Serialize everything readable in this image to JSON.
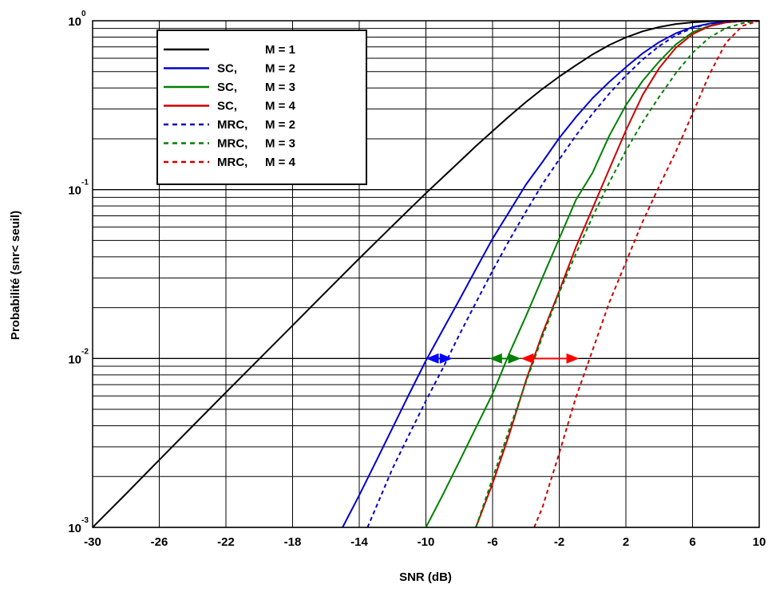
{
  "chart_data": {
    "type": "line",
    "title": "",
    "xlabel": "SNR (dB)",
    "ylabel": "Probabilité (snr< seuil)",
    "xlim": [
      -30,
      10
    ],
    "ylim": [
      0.001,
      1
    ],
    "yscale": "log",
    "grid": true,
    "legend_position": "top-left",
    "x_ticks": [
      -30,
      -26,
      -22,
      -18,
      -14,
      -10,
      -6,
      -2,
      2,
      6,
      10
    ],
    "y_ticks": [
      {
        "base": "10",
        "exp": "-3",
        "value": 0.001
      },
      {
        "base": "10",
        "exp": "-2",
        "value": 0.01
      },
      {
        "base": "10",
        "exp": "-1",
        "value": 0.1
      },
      {
        "base": "10",
        "exp": "0",
        "value": 1
      }
    ],
    "series": [
      {
        "name": "M = 1",
        "label": "M = 1",
        "legend_prefix": "",
        "color": "#000000",
        "style": "solid",
        "x": [
          -30,
          -28,
          -26,
          -24,
          -22,
          -20,
          -18,
          -16,
          -14,
          -12,
          -10,
          -9,
          -8,
          -7,
          -6,
          -5,
          -4,
          -3,
          -2,
          -1,
          0,
          1,
          2,
          3,
          4,
          5,
          6,
          7,
          8,
          9,
          10
        ],
        "y": [
          0.001,
          0.00158,
          0.00251,
          0.00398,
          0.0063,
          0.00995,
          0.0157,
          0.0248,
          0.0391,
          0.0612,
          0.0952,
          0.118,
          0.146,
          0.181,
          0.222,
          0.272,
          0.33,
          0.395,
          0.467,
          0.545,
          0.632,
          0.718,
          0.797,
          0.865,
          0.918,
          0.956,
          0.979,
          0.992,
          0.997,
          0.999,
          1.0
        ]
      },
      {
        "name": "SC, M = 2",
        "label": "M = 2",
        "legend_prefix": "SC,",
        "color": "#0000cc",
        "style": "solid",
        "x": [
          -15,
          -14,
          -13,
          -12,
          -11,
          -10,
          -9,
          -8,
          -7,
          -6,
          -5,
          -4,
          -3,
          -2,
          -1,
          0,
          1,
          2,
          3,
          4,
          5,
          6,
          7,
          8,
          9,
          10
        ],
        "y": [
          0.001,
          0.00155,
          0.00245,
          0.00389,
          0.00617,
          0.00971,
          0.0147,
          0.0222,
          0.0338,
          0.0512,
          0.074,
          0.107,
          0.146,
          0.202,
          0.269,
          0.348,
          0.434,
          0.531,
          0.641,
          0.748,
          0.843,
          0.917,
          0.962,
          0.985,
          0.996,
          1.0
        ]
      },
      {
        "name": "SC, M = 3",
        "label": "M = 3",
        "legend_prefix": "SC,",
        "color": "#008000",
        "style": "solid",
        "x": [
          -10,
          -9,
          -8,
          -7,
          -6,
          -5,
          -4,
          -3,
          -2,
          -1,
          0,
          1,
          2,
          3,
          4,
          5,
          6,
          7,
          8,
          9,
          10
        ],
        "y": [
          0.001,
          0.00155,
          0.00245,
          0.00389,
          0.00617,
          0.0107,
          0.0178,
          0.0302,
          0.0513,
          0.087,
          0.126,
          0.208,
          0.316,
          0.44,
          0.575,
          0.724,
          0.855,
          0.934,
          0.977,
          0.993,
          1.0
        ]
      },
      {
        "name": "SC, M = 4",
        "label": "M = 4",
        "legend_prefix": "SC,",
        "color": "#cc0000",
        "style": "solid",
        "x": [
          -7,
          -6,
          -5,
          -4,
          -3,
          -2,
          -1,
          0,
          1,
          2,
          3,
          4,
          5,
          6,
          7,
          8,
          9,
          10
        ],
        "y": [
          0.001,
          0.00182,
          0.00355,
          0.0074,
          0.0141,
          0.0251,
          0.0457,
          0.0776,
          0.132,
          0.224,
          0.363,
          0.525,
          0.692,
          0.832,
          0.927,
          0.977,
          0.995,
          1.0
        ]
      },
      {
        "name": "MRC, M = 2",
        "label": "M = 2",
        "legend_prefix": "MRC,",
        "color": "#0000cc",
        "style": "dashed",
        "x": [
          -13.5,
          -12,
          -11,
          -10,
          -9,
          -8,
          -7,
          -6,
          -5,
          -4,
          -3,
          -2,
          -1,
          0,
          1,
          2,
          3,
          4,
          5,
          6,
          7,
          8,
          9,
          10
        ],
        "y": [
          0.001,
          0.00224,
          0.00355,
          0.00562,
          0.0087,
          0.0138,
          0.0214,
          0.0331,
          0.0501,
          0.0741,
          0.108,
          0.151,
          0.209,
          0.282,
          0.37,
          0.473,
          0.589,
          0.708,
          0.82,
          0.906,
          0.959,
          0.988,
          0.998,
          1.0
        ]
      },
      {
        "name": "MRC, M = 3",
        "label": "M = 3",
        "legend_prefix": "MRC,",
        "color": "#008000",
        "style": "dashed",
        "x": [
          -7,
          -6,
          -5,
          -4,
          -3,
          -2,
          -1,
          0,
          1,
          2,
          3,
          4,
          5,
          6,
          7,
          8,
          9,
          10
        ],
        "y": [
          0.001,
          0.00195,
          0.0038,
          0.00724,
          0.0135,
          0.0245,
          0.0417,
          0.0692,
          0.11,
          0.17,
          0.251,
          0.355,
          0.49,
          0.646,
          0.794,
          0.905,
          0.967,
          1.0
        ]
      },
      {
        "name": "MRC, M = 4",
        "label": "M = 4",
        "legend_prefix": "MRC,",
        "color": "#cc0000",
        "style": "dashed",
        "x": [
          -3.5,
          -3,
          -2,
          -1,
          0,
          1,
          2,
          3,
          4,
          5,
          6,
          7,
          8,
          9,
          10
        ],
        "y": [
          0.001,
          0.00132,
          0.00275,
          0.00589,
          0.0112,
          0.0214,
          0.0372,
          0.0645,
          0.105,
          0.168,
          0.282,
          0.479,
          0.741,
          0.933,
          1.0
        ]
      }
    ],
    "annotations": [
      {
        "type": "double-arrow",
        "y": 0.01,
        "x_from": -10,
        "x_to": -8.4,
        "color": "#0000ff"
      },
      {
        "type": "double-arrow",
        "y": 0.01,
        "x_from": -6.2,
        "x_to": -4.3,
        "color": "#008000"
      },
      {
        "type": "double-arrow",
        "y": 0.01,
        "x_from": -4.3,
        "x_to": -0.8,
        "color": "#ff0000"
      }
    ]
  }
}
